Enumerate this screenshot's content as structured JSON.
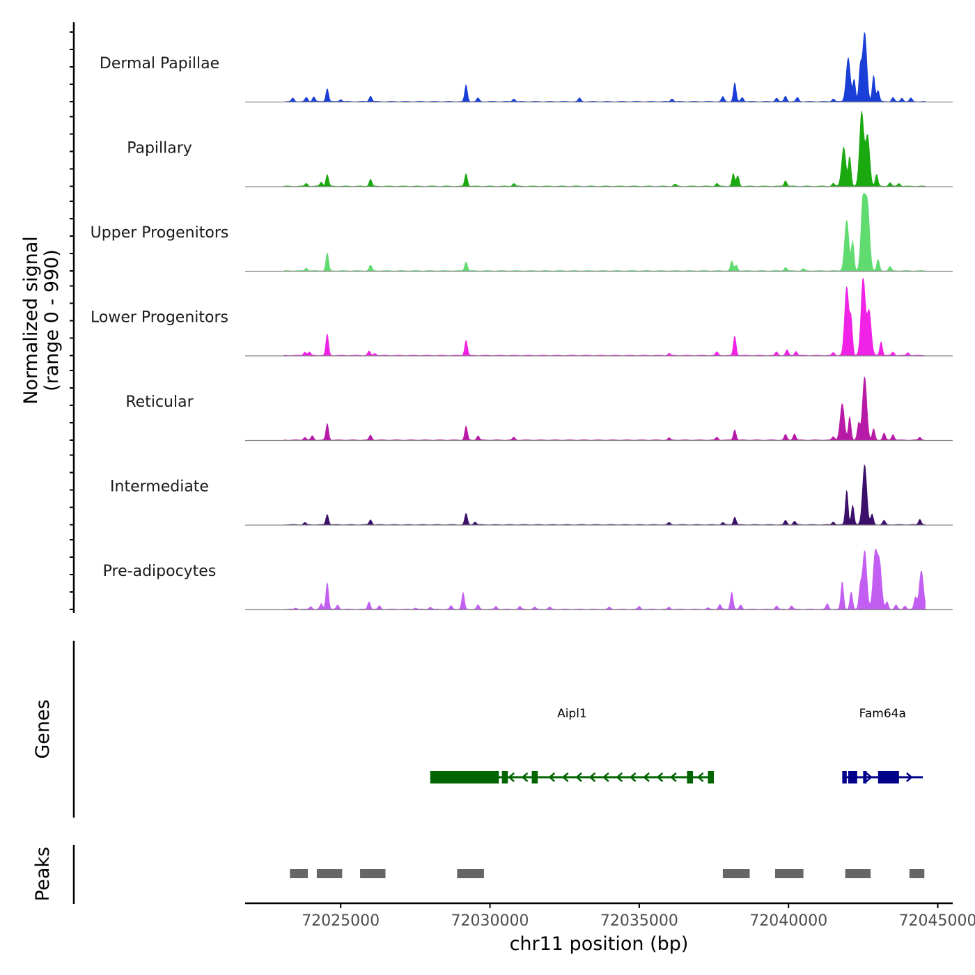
{
  "chart_data": {
    "type": "area",
    "title": "",
    "xlabel": "chr11 position (bp)",
    "ylabel": "Normalized signal",
    "ylabel_sub": "(range 0 - 990)",
    "xlim": [
      72021800,
      72045500
    ],
    "ylim": [
      0,
      990
    ],
    "x_ticks": [
      72025000,
      72030000,
      72035000,
      72040000,
      72045000
    ],
    "x_tick_labels": [
      "72025000",
      "72030000",
      "72035000",
      "72040000",
      "72045000"
    ],
    "track_labels": {
      "genes": "Genes",
      "peaks": "Peaks"
    },
    "series": [
      {
        "name": "Dermal Papillae",
        "color": "#1a3fd6",
        "peaks": [
          [
            72023400,
            50
          ],
          [
            72023850,
            60
          ],
          [
            72024100,
            70
          ],
          [
            72024550,
            190
          ],
          [
            72025000,
            30
          ],
          [
            72026000,
            80
          ],
          [
            72029200,
            240
          ],
          [
            72029600,
            50
          ],
          [
            72030800,
            40
          ],
          [
            72033000,
            50
          ],
          [
            72036100,
            40
          ],
          [
            72037800,
            70
          ],
          [
            72038200,
            270
          ],
          [
            72038450,
            60
          ],
          [
            72039600,
            50
          ],
          [
            72039900,
            80
          ],
          [
            72040300,
            60
          ],
          [
            72041500,
            40
          ],
          [
            72042000,
            630
          ],
          [
            72042200,
            310
          ],
          [
            72042400,
            460
          ],
          [
            72042550,
            990
          ],
          [
            72042850,
            380
          ],
          [
            72043000,
            160
          ],
          [
            72043500,
            60
          ],
          [
            72043800,
            50
          ],
          [
            72044100,
            50
          ]
        ]
      },
      {
        "name": "Papillary",
        "color": "#1aaa10",
        "peaks": [
          [
            72023850,
            40
          ],
          [
            72024550,
            170
          ],
          [
            72024350,
            60
          ],
          [
            72026000,
            100
          ],
          [
            72029200,
            180
          ],
          [
            72030800,
            40
          ],
          [
            72036200,
            30
          ],
          [
            72037600,
            40
          ],
          [
            72038150,
            180
          ],
          [
            72038300,
            150
          ],
          [
            72039900,
            80
          ],
          [
            72041500,
            40
          ],
          [
            72041850,
            560
          ],
          [
            72042050,
            420
          ],
          [
            72042450,
            1060
          ],
          [
            72042650,
            720
          ],
          [
            72042950,
            170
          ],
          [
            72043400,
            50
          ],
          [
            72043700,
            40
          ]
        ]
      },
      {
        "name": "Upper Progenitors",
        "color": "#5fdb70",
        "peaks": [
          [
            72023850,
            40
          ],
          [
            72024550,
            260
          ],
          [
            72026000,
            80
          ],
          [
            72029200,
            130
          ],
          [
            72038100,
            140
          ],
          [
            72038250,
            80
          ],
          [
            72039900,
            50
          ],
          [
            72040500,
            30
          ],
          [
            72041950,
            720
          ],
          [
            72042150,
            420
          ],
          [
            72042500,
            1050
          ],
          [
            72042650,
            900
          ],
          [
            72043000,
            160
          ],
          [
            72043400,
            60
          ]
        ]
      },
      {
        "name": "Lower Progenitors",
        "color": "#f022e6",
        "peaks": [
          [
            72023800,
            50
          ],
          [
            72023950,
            50
          ],
          [
            72024550,
            310
          ],
          [
            72025950,
            60
          ],
          [
            72026150,
            30
          ],
          [
            72029200,
            220
          ],
          [
            72036000,
            30
          ],
          [
            72037600,
            50
          ],
          [
            72038200,
            280
          ],
          [
            72039600,
            50
          ],
          [
            72039950,
            80
          ],
          [
            72040250,
            60
          ],
          [
            72041500,
            40
          ],
          [
            72041950,
            980
          ],
          [
            72042100,
            480
          ],
          [
            72042500,
            1120
          ],
          [
            72042700,
            640
          ],
          [
            72043100,
            200
          ],
          [
            72043500,
            50
          ],
          [
            72044000,
            40
          ]
        ]
      },
      {
        "name": "Reticular",
        "color": "#b81aa8",
        "peaks": [
          [
            72023800,
            40
          ],
          [
            72024050,
            60
          ],
          [
            72024550,
            240
          ],
          [
            72026000,
            70
          ],
          [
            72029200,
            200
          ],
          [
            72029600,
            60
          ],
          [
            72030800,
            40
          ],
          [
            72036000,
            30
          ],
          [
            72037600,
            40
          ],
          [
            72038200,
            150
          ],
          [
            72039900,
            80
          ],
          [
            72040200,
            90
          ],
          [
            72041500,
            50
          ],
          [
            72041800,
            520
          ],
          [
            72042050,
            340
          ],
          [
            72042350,
            240
          ],
          [
            72042550,
            910
          ],
          [
            72042850,
            160
          ],
          [
            72043200,
            100
          ],
          [
            72043500,
            80
          ],
          [
            72044400,
            40
          ]
        ]
      },
      {
        "name": "Intermediate",
        "color": "#3b0f6a",
        "peaks": [
          [
            72023800,
            30
          ],
          [
            72024550,
            150
          ],
          [
            72026000,
            70
          ],
          [
            72029200,
            160
          ],
          [
            72029500,
            40
          ],
          [
            72036000,
            30
          ],
          [
            72037800,
            30
          ],
          [
            72038200,
            110
          ],
          [
            72039900,
            60
          ],
          [
            72040200,
            50
          ],
          [
            72041500,
            40
          ],
          [
            72041950,
            500
          ],
          [
            72042150,
            280
          ],
          [
            72042550,
            860
          ],
          [
            72042800,
            150
          ],
          [
            72043200,
            60
          ],
          [
            72044400,
            80
          ]
        ]
      },
      {
        "name": "Pre-adipocytes",
        "color": "#c25ef2",
        "peaks": [
          [
            72023500,
            20
          ],
          [
            72024000,
            40
          ],
          [
            72024550,
            390
          ],
          [
            72024350,
            80
          ],
          [
            72024900,
            60
          ],
          [
            72025950,
            110
          ],
          [
            72026300,
            50
          ],
          [
            72027500,
            20
          ],
          [
            72028000,
            30
          ],
          [
            72029100,
            240
          ],
          [
            72028700,
            50
          ],
          [
            72029600,
            60
          ],
          [
            72030200,
            40
          ],
          [
            72031000,
            40
          ],
          [
            72031500,
            30
          ],
          [
            72032000,
            30
          ],
          [
            72034000,
            30
          ],
          [
            72035000,
            40
          ],
          [
            72036000,
            30
          ],
          [
            72037300,
            20
          ],
          [
            72037700,
            70
          ],
          [
            72038100,
            250
          ],
          [
            72038400,
            60
          ],
          [
            72039600,
            50
          ],
          [
            72040100,
            50
          ],
          [
            72041300,
            80
          ],
          [
            72041800,
            400
          ],
          [
            72042100,
            250
          ],
          [
            72042400,
            300
          ],
          [
            72042550,
            840
          ],
          [
            72042900,
            780
          ],
          [
            72043050,
            640
          ],
          [
            72043300,
            110
          ],
          [
            72043600,
            60
          ],
          [
            72043900,
            50
          ],
          [
            72044250,
            170
          ],
          [
            72044450,
            550
          ]
        ]
      }
    ],
    "genes": [
      {
        "name": "Aipl1",
        "color": "#006400",
        "strand": "-",
        "start": 72028000,
        "end": 72037500,
        "exons": [
          [
            72028000,
            72030300
          ],
          [
            72030400,
            72030600
          ],
          [
            72031400,
            72031600
          ],
          [
            72036600,
            72036800
          ],
          [
            72037300,
            72037500
          ]
        ]
      },
      {
        "name": "Fam64a",
        "color": "#00008b",
        "strand": "+",
        "start": 72041800,
        "end": 72044500,
        "exons": [
          [
            72041800,
            72041950
          ],
          [
            72042000,
            72042300
          ],
          [
            72042500,
            72042600
          ],
          [
            72043000,
            72043700
          ]
        ]
      }
    ],
    "peak_regions": [
      [
        72023300,
        72023900
      ],
      [
        72024200,
        72025050
      ],
      [
        72025650,
        72026500
      ],
      [
        72028900,
        72029800
      ],
      [
        72037800,
        72038700
      ],
      [
        72039550,
        72040500
      ],
      [
        72041900,
        72042750
      ],
      [
        72044050,
        72044550
      ]
    ]
  },
  "colors": {
    "axis": "#000000",
    "baseline": "#888888",
    "peak_region": "#666666",
    "tick_label": "#4d4d4d"
  }
}
